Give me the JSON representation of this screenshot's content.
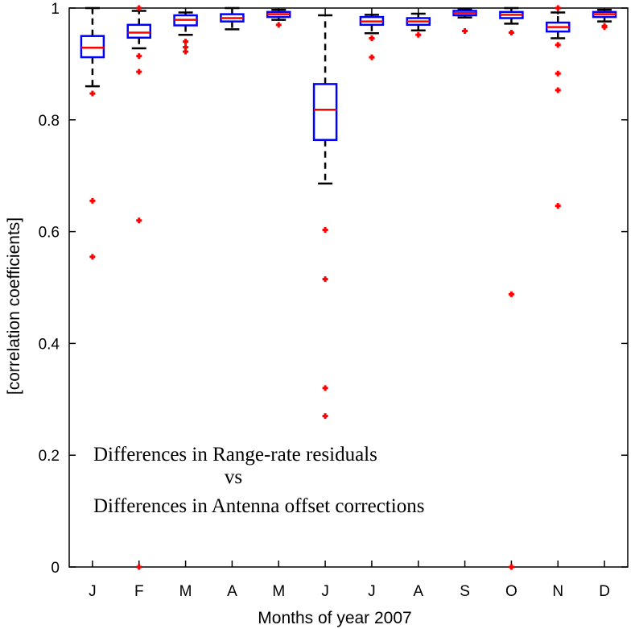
{
  "chart_data": {
    "type": "box",
    "title": "",
    "xlabel": "Months of year 2007",
    "ylabel": "[correlation coefficients]",
    "ylim": [
      0,
      1
    ],
    "yticks": [
      0,
      0.2,
      0.4,
      0.6,
      0.8,
      1
    ],
    "ytick_labels": [
      "0",
      "0.2",
      "0.4",
      "0.6",
      "0.8",
      "1"
    ],
    "categories": [
      "J",
      "F",
      "M",
      "A",
      "M",
      "J",
      "J",
      "A",
      "S",
      "O",
      "N",
      "D"
    ],
    "boxes": [
      {
        "q1": 0.912,
        "median": 0.929,
        "q3": 0.95,
        "whisker_low": 0.86,
        "whisker_high": 1.0,
        "outliers": [
          0.847,
          0.655,
          0.555
        ]
      },
      {
        "q1": 0.947,
        "median": 0.956,
        "q3": 0.97,
        "whisker_low": 0.928,
        "whisker_high": 0.995,
        "outliers": [
          1.0,
          0.914,
          0.886,
          0.62,
          0.0
        ]
      },
      {
        "q1": 0.969,
        "median": 0.979,
        "q3": 0.987,
        "whisker_low": 0.952,
        "whisker_high": 0.992,
        "outliers": [
          0.94,
          0.93,
          0.922
        ]
      },
      {
        "q1": 0.976,
        "median": 0.982,
        "q3": 0.989,
        "whisker_low": 0.962,
        "whisker_high": 1.0,
        "outliers": []
      },
      {
        "q1": 0.984,
        "median": 0.989,
        "q3": 0.993,
        "whisker_low": 0.979,
        "whisker_high": 0.997,
        "outliers": [
          0.97
        ]
      },
      {
        "q1": 0.764,
        "median": 0.818,
        "q3": 0.864,
        "whisker_low": 0.686,
        "whisker_high": 0.987,
        "outliers": [
          0.603,
          0.515,
          0.32,
          0.27
        ]
      },
      {
        "q1": 0.97,
        "median": 0.976,
        "q3": 0.984,
        "whisker_low": 0.955,
        "whisker_high": 0.988,
        "outliers": [
          0.946,
          0.912
        ]
      },
      {
        "q1": 0.97,
        "median": 0.976,
        "q3": 0.982,
        "whisker_low": 0.96,
        "whisker_high": 0.99,
        "outliers": [
          0.952
        ]
      },
      {
        "q1": 0.987,
        "median": 0.991,
        "q3": 0.995,
        "whisker_low": 0.983,
        "whisker_high": 0.998,
        "outliers": [
          0.959
        ]
      },
      {
        "q1": 0.982,
        "median": 0.988,
        "q3": 0.993,
        "whisker_low": 0.972,
        "whisker_high": 1.0,
        "outliers": [
          0.956,
          0.488,
          0.0
        ]
      },
      {
        "q1": 0.958,
        "median": 0.966,
        "q3": 0.974,
        "whisker_low": 0.946,
        "whisker_high": 0.992,
        "outliers": [
          1.0,
          0.934,
          0.883,
          0.853,
          0.646
        ]
      },
      {
        "q1": 0.984,
        "median": 0.989,
        "q3": 0.993,
        "whisker_low": 0.976,
        "whisker_high": 0.997,
        "outliers": [
          0.968,
          0.966
        ]
      }
    ],
    "annotation": {
      "line1": "Differences in Range-rate residuals",
      "line2": "vs",
      "line3": "Differences in Antenna offset corrections"
    },
    "colors": {
      "box": "#0000ff",
      "median": "#ff0000",
      "whisker": "#000000",
      "outlier": "#ff0000",
      "axis": "#000000"
    },
    "grid": false
  }
}
